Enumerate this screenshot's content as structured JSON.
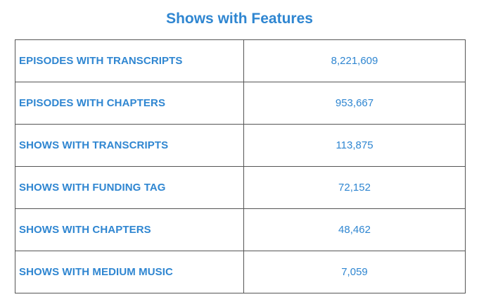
{
  "title": "Shows with Features",
  "rows": [
    {
      "label": "EPISODES WITH TRANSCRIPTS",
      "value": "8,221,609"
    },
    {
      "label": "EPISODES WITH CHAPTERS",
      "value": "953,667"
    },
    {
      "label": "SHOWS WITH TRANSCRIPTS",
      "value": "113,875"
    },
    {
      "label": "SHOWS WITH FUNDING TAG",
      "value": "72,152"
    },
    {
      "label": "SHOWS WITH CHAPTERS",
      "value": "48,462"
    },
    {
      "label": "SHOWS WITH MEDIUM MUSIC",
      "value": "7,059"
    }
  ],
  "colors": {
    "accent": "#2f86d1",
    "border": "#555555",
    "background": "#ffffff"
  }
}
